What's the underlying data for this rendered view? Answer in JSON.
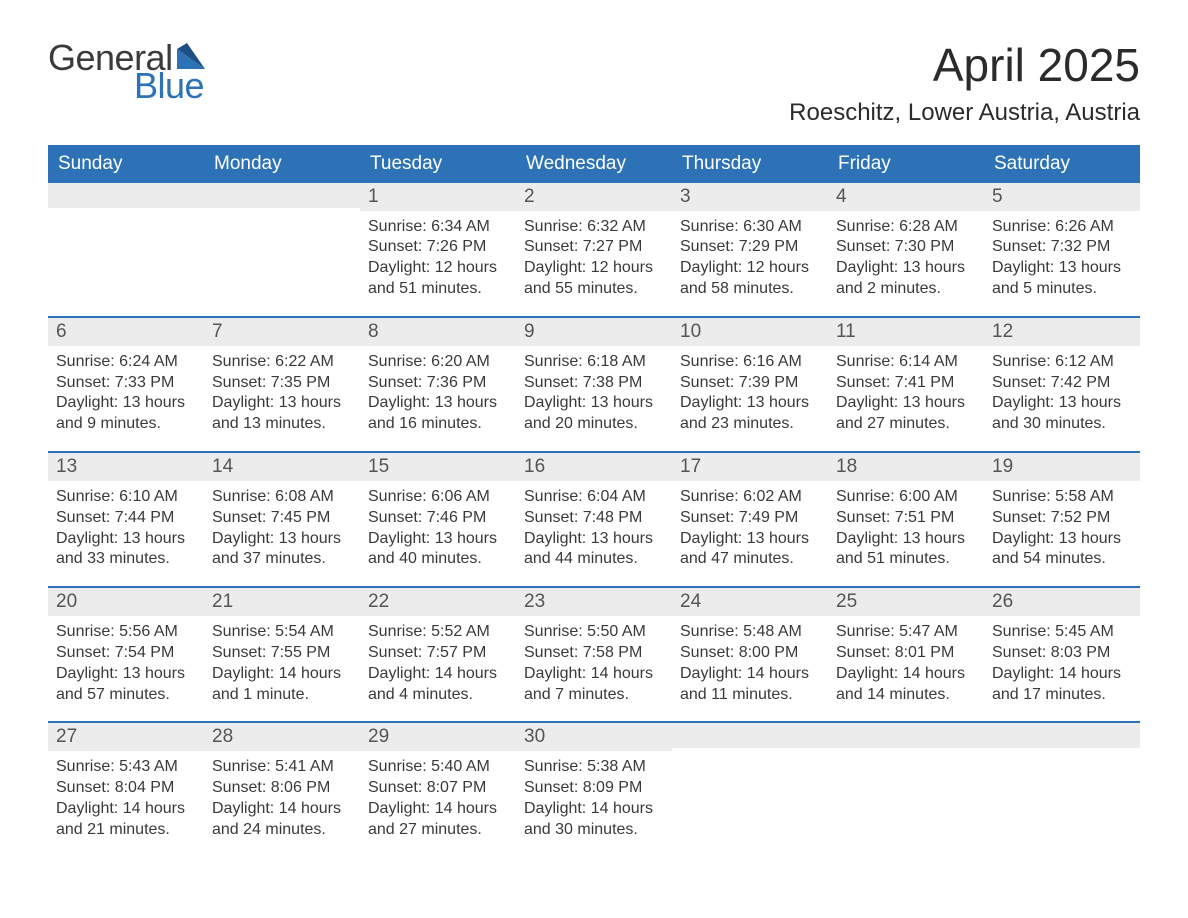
{
  "logo": {
    "word1": "General",
    "word2": "Blue",
    "text_color": "#3a3a3a",
    "accent_color": "#2d72b6"
  },
  "title": "April 2025",
  "subtitle": "Roeschitz, Lower Austria, Austria",
  "colors": {
    "header_bg": "#2d72b6",
    "header_text": "#ffffff",
    "daynum_bg": "#ececec",
    "daynum_text": "#555555",
    "body_text": "#3a3a3a",
    "week_border": "#2d72b6",
    "page_bg": "#ffffff"
  },
  "fontsizes": {
    "title": 46,
    "subtitle": 24,
    "dayname": 19,
    "daynum": 19,
    "body": 16
  },
  "daynames": [
    "Sunday",
    "Monday",
    "Tuesday",
    "Wednesday",
    "Thursday",
    "Friday",
    "Saturday"
  ],
  "weeks": [
    [
      {
        "n": "",
        "sunrise": "",
        "sunset": "",
        "daylight1": "",
        "daylight2": ""
      },
      {
        "n": "",
        "sunrise": "",
        "sunset": "",
        "daylight1": "",
        "daylight2": ""
      },
      {
        "n": "1",
        "sunrise": "Sunrise: 6:34 AM",
        "sunset": "Sunset: 7:26 PM",
        "daylight1": "Daylight: 12 hours",
        "daylight2": "and 51 minutes."
      },
      {
        "n": "2",
        "sunrise": "Sunrise: 6:32 AM",
        "sunset": "Sunset: 7:27 PM",
        "daylight1": "Daylight: 12 hours",
        "daylight2": "and 55 minutes."
      },
      {
        "n": "3",
        "sunrise": "Sunrise: 6:30 AM",
        "sunset": "Sunset: 7:29 PM",
        "daylight1": "Daylight: 12 hours",
        "daylight2": "and 58 minutes."
      },
      {
        "n": "4",
        "sunrise": "Sunrise: 6:28 AM",
        "sunset": "Sunset: 7:30 PM",
        "daylight1": "Daylight: 13 hours",
        "daylight2": "and 2 minutes."
      },
      {
        "n": "5",
        "sunrise": "Sunrise: 6:26 AM",
        "sunset": "Sunset: 7:32 PM",
        "daylight1": "Daylight: 13 hours",
        "daylight2": "and 5 minutes."
      }
    ],
    [
      {
        "n": "6",
        "sunrise": "Sunrise: 6:24 AM",
        "sunset": "Sunset: 7:33 PM",
        "daylight1": "Daylight: 13 hours",
        "daylight2": "and 9 minutes."
      },
      {
        "n": "7",
        "sunrise": "Sunrise: 6:22 AM",
        "sunset": "Sunset: 7:35 PM",
        "daylight1": "Daylight: 13 hours",
        "daylight2": "and 13 minutes."
      },
      {
        "n": "8",
        "sunrise": "Sunrise: 6:20 AM",
        "sunset": "Sunset: 7:36 PM",
        "daylight1": "Daylight: 13 hours",
        "daylight2": "and 16 minutes."
      },
      {
        "n": "9",
        "sunrise": "Sunrise: 6:18 AM",
        "sunset": "Sunset: 7:38 PM",
        "daylight1": "Daylight: 13 hours",
        "daylight2": "and 20 minutes."
      },
      {
        "n": "10",
        "sunrise": "Sunrise: 6:16 AM",
        "sunset": "Sunset: 7:39 PM",
        "daylight1": "Daylight: 13 hours",
        "daylight2": "and 23 minutes."
      },
      {
        "n": "11",
        "sunrise": "Sunrise: 6:14 AM",
        "sunset": "Sunset: 7:41 PM",
        "daylight1": "Daylight: 13 hours",
        "daylight2": "and 27 minutes."
      },
      {
        "n": "12",
        "sunrise": "Sunrise: 6:12 AM",
        "sunset": "Sunset: 7:42 PM",
        "daylight1": "Daylight: 13 hours",
        "daylight2": "and 30 minutes."
      }
    ],
    [
      {
        "n": "13",
        "sunrise": "Sunrise: 6:10 AM",
        "sunset": "Sunset: 7:44 PM",
        "daylight1": "Daylight: 13 hours",
        "daylight2": "and 33 minutes."
      },
      {
        "n": "14",
        "sunrise": "Sunrise: 6:08 AM",
        "sunset": "Sunset: 7:45 PM",
        "daylight1": "Daylight: 13 hours",
        "daylight2": "and 37 minutes."
      },
      {
        "n": "15",
        "sunrise": "Sunrise: 6:06 AM",
        "sunset": "Sunset: 7:46 PM",
        "daylight1": "Daylight: 13 hours",
        "daylight2": "and 40 minutes."
      },
      {
        "n": "16",
        "sunrise": "Sunrise: 6:04 AM",
        "sunset": "Sunset: 7:48 PM",
        "daylight1": "Daylight: 13 hours",
        "daylight2": "and 44 minutes."
      },
      {
        "n": "17",
        "sunrise": "Sunrise: 6:02 AM",
        "sunset": "Sunset: 7:49 PM",
        "daylight1": "Daylight: 13 hours",
        "daylight2": "and 47 minutes."
      },
      {
        "n": "18",
        "sunrise": "Sunrise: 6:00 AM",
        "sunset": "Sunset: 7:51 PM",
        "daylight1": "Daylight: 13 hours",
        "daylight2": "and 51 minutes."
      },
      {
        "n": "19",
        "sunrise": "Sunrise: 5:58 AM",
        "sunset": "Sunset: 7:52 PM",
        "daylight1": "Daylight: 13 hours",
        "daylight2": "and 54 minutes."
      }
    ],
    [
      {
        "n": "20",
        "sunrise": "Sunrise: 5:56 AM",
        "sunset": "Sunset: 7:54 PM",
        "daylight1": "Daylight: 13 hours",
        "daylight2": "and 57 minutes."
      },
      {
        "n": "21",
        "sunrise": "Sunrise: 5:54 AM",
        "sunset": "Sunset: 7:55 PM",
        "daylight1": "Daylight: 14 hours",
        "daylight2": "and 1 minute."
      },
      {
        "n": "22",
        "sunrise": "Sunrise: 5:52 AM",
        "sunset": "Sunset: 7:57 PM",
        "daylight1": "Daylight: 14 hours",
        "daylight2": "and 4 minutes."
      },
      {
        "n": "23",
        "sunrise": "Sunrise: 5:50 AM",
        "sunset": "Sunset: 7:58 PM",
        "daylight1": "Daylight: 14 hours",
        "daylight2": "and 7 minutes."
      },
      {
        "n": "24",
        "sunrise": "Sunrise: 5:48 AM",
        "sunset": "Sunset: 8:00 PM",
        "daylight1": "Daylight: 14 hours",
        "daylight2": "and 11 minutes."
      },
      {
        "n": "25",
        "sunrise": "Sunrise: 5:47 AM",
        "sunset": "Sunset: 8:01 PM",
        "daylight1": "Daylight: 14 hours",
        "daylight2": "and 14 minutes."
      },
      {
        "n": "26",
        "sunrise": "Sunrise: 5:45 AM",
        "sunset": "Sunset: 8:03 PM",
        "daylight1": "Daylight: 14 hours",
        "daylight2": "and 17 minutes."
      }
    ],
    [
      {
        "n": "27",
        "sunrise": "Sunrise: 5:43 AM",
        "sunset": "Sunset: 8:04 PM",
        "daylight1": "Daylight: 14 hours",
        "daylight2": "and 21 minutes."
      },
      {
        "n": "28",
        "sunrise": "Sunrise: 5:41 AM",
        "sunset": "Sunset: 8:06 PM",
        "daylight1": "Daylight: 14 hours",
        "daylight2": "and 24 minutes."
      },
      {
        "n": "29",
        "sunrise": "Sunrise: 5:40 AM",
        "sunset": "Sunset: 8:07 PM",
        "daylight1": "Daylight: 14 hours",
        "daylight2": "and 27 minutes."
      },
      {
        "n": "30",
        "sunrise": "Sunrise: 5:38 AM",
        "sunset": "Sunset: 8:09 PM",
        "daylight1": "Daylight: 14 hours",
        "daylight2": "and 30 minutes."
      },
      {
        "n": "",
        "sunrise": "",
        "sunset": "",
        "daylight1": "",
        "daylight2": ""
      },
      {
        "n": "",
        "sunrise": "",
        "sunset": "",
        "daylight1": "",
        "daylight2": ""
      },
      {
        "n": "",
        "sunrise": "",
        "sunset": "",
        "daylight1": "",
        "daylight2": ""
      }
    ]
  ]
}
